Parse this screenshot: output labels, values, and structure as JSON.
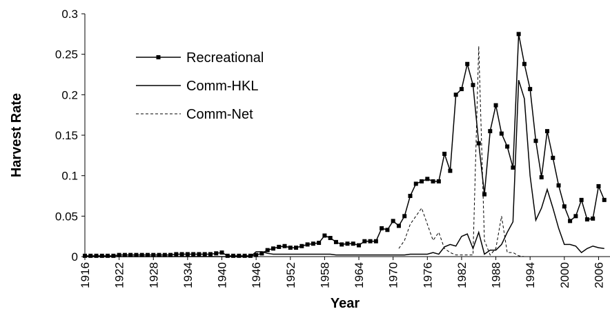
{
  "chart_data": {
    "type": "line",
    "y_label": "Harvest Rate",
    "x_label": "Year",
    "x": [
      1916,
      1917,
      1918,
      1919,
      1920,
      1921,
      1922,
      1923,
      1924,
      1925,
      1926,
      1927,
      1928,
      1929,
      1930,
      1931,
      1932,
      1933,
      1934,
      1935,
      1936,
      1937,
      1938,
      1939,
      1940,
      1941,
      1942,
      1943,
      1944,
      1945,
      1946,
      1947,
      1948,
      1949,
      1950,
      1951,
      1952,
      1953,
      1954,
      1955,
      1956,
      1957,
      1958,
      1959,
      1960,
      1961,
      1962,
      1963,
      1964,
      1965,
      1966,
      1967,
      1968,
      1969,
      1970,
      1971,
      1972,
      1973,
      1974,
      1975,
      1976,
      1977,
      1978,
      1979,
      1980,
      1981,
      1982,
      1983,
      1984,
      1985,
      1986,
      1987,
      1988,
      1989,
      1990,
      1991,
      1992,
      1993,
      1994,
      1995,
      1996,
      1997,
      1998,
      1999,
      2000,
      2001,
      2002,
      2003,
      2004,
      2005,
      2006,
      2007
    ],
    "series": [
      {
        "name": "Recreational",
        "color": "#000000",
        "marker": "square",
        "dash": false,
        "values": [
          0.001,
          0.001,
          0.001,
          0.001,
          0.001,
          0.001,
          0.002,
          0.002,
          0.002,
          0.002,
          0.002,
          0.002,
          0.002,
          0.002,
          0.002,
          0.002,
          0.003,
          0.003,
          0.003,
          0.003,
          0.003,
          0.003,
          0.003,
          0.004,
          0.005,
          0.001,
          0.001,
          0.001,
          0.001,
          0.001,
          0.002,
          0.004,
          0.008,
          0.01,
          0.012,
          0.013,
          0.011,
          0.011,
          0.013,
          0.015,
          0.016,
          0.017,
          0.026,
          0.023,
          0.018,
          0.015,
          0.016,
          0.016,
          0.014,
          0.019,
          0.019,
          0.019,
          0.035,
          0.033,
          0.044,
          0.038,
          0.05,
          0.075,
          0.09,
          0.093,
          0.096,
          0.093,
          0.093,
          0.127,
          0.106,
          0.2,
          0.207,
          0.238,
          0.212,
          0.14,
          0.077,
          0.155,
          0.187,
          0.152,
          0.136,
          0.11,
          0.275,
          0.238,
          0.207,
          0.143,
          0.098,
          0.155,
          0.122,
          0.088,
          0.062,
          0.044,
          0.05,
          0.07,
          0.046,
          0.047,
          0.087,
          0.07
        ]
      },
      {
        "name": "Comm-HKL",
        "color": "#000000",
        "marker": "none",
        "dash": false,
        "values": [
          0,
          0,
          0,
          0,
          0,
          0,
          0,
          0,
          0,
          0,
          0,
          0,
          0,
          0,
          0,
          0,
          0,
          0,
          0,
          0,
          0,
          0,
          0,
          0,
          0,
          0,
          0,
          0,
          0,
          0,
          0.006,
          0.006,
          0.004,
          0.003,
          0.003,
          0.003,
          0.003,
          0.003,
          0.003,
          0.003,
          0.003,
          0.003,
          0.003,
          0.003,
          0.002,
          0.002,
          0.002,
          0.002,
          0.002,
          0.002,
          0.002,
          0.002,
          0.002,
          0.002,
          0.002,
          0.002,
          0.002,
          0.003,
          0.003,
          0.003,
          0.003,
          0.005,
          0.003,
          0.012,
          0.015,
          0.013,
          0.025,
          0.028,
          0.01,
          0.03,
          0.003,
          0.008,
          0.008,
          0.015,
          0.03,
          0.043,
          0.218,
          0.195,
          0.1,
          0.045,
          0.06,
          0.083,
          0.06,
          0.035,
          0.015,
          0.015,
          0.013,
          0.005,
          0.01,
          0.013,
          0.011,
          0.01
        ]
      },
      {
        "name": "Comm-Net",
        "color": "#000000",
        "marker": "none",
        "dash": true,
        "values": [
          null,
          null,
          null,
          null,
          null,
          null,
          null,
          null,
          null,
          null,
          null,
          null,
          null,
          null,
          null,
          null,
          null,
          null,
          null,
          null,
          null,
          null,
          null,
          null,
          null,
          null,
          null,
          null,
          null,
          null,
          null,
          null,
          null,
          null,
          null,
          null,
          null,
          null,
          null,
          null,
          null,
          null,
          null,
          null,
          null,
          null,
          null,
          null,
          null,
          null,
          null,
          null,
          null,
          null,
          null,
          0.01,
          0.02,
          0.04,
          0.05,
          0.06,
          0.04,
          0.02,
          0.03,
          0.01,
          0.005,
          0.002,
          0.002,
          0.002,
          0.002,
          0.26,
          0.02,
          0.002,
          0.01,
          0.05,
          0.005,
          0.005,
          0.001,
          0,
          0,
          0,
          0,
          0,
          0,
          0,
          0,
          0,
          0,
          0,
          0,
          0,
          0,
          0
        ]
      }
    ],
    "xlim": [
      1916,
      2008
    ],
    "xticks": [
      1916,
      1922,
      1928,
      1934,
      1940,
      1946,
      1952,
      1958,
      1964,
      1970,
      1976,
      1982,
      1988,
      1994,
      2000,
      2006
    ],
    "ylim": [
      0,
      0.3
    ],
    "yticks": [
      0,
      0.05,
      0.1,
      0.15,
      0.2,
      0.25,
      0.3
    ],
    "legend": "upper-left"
  }
}
